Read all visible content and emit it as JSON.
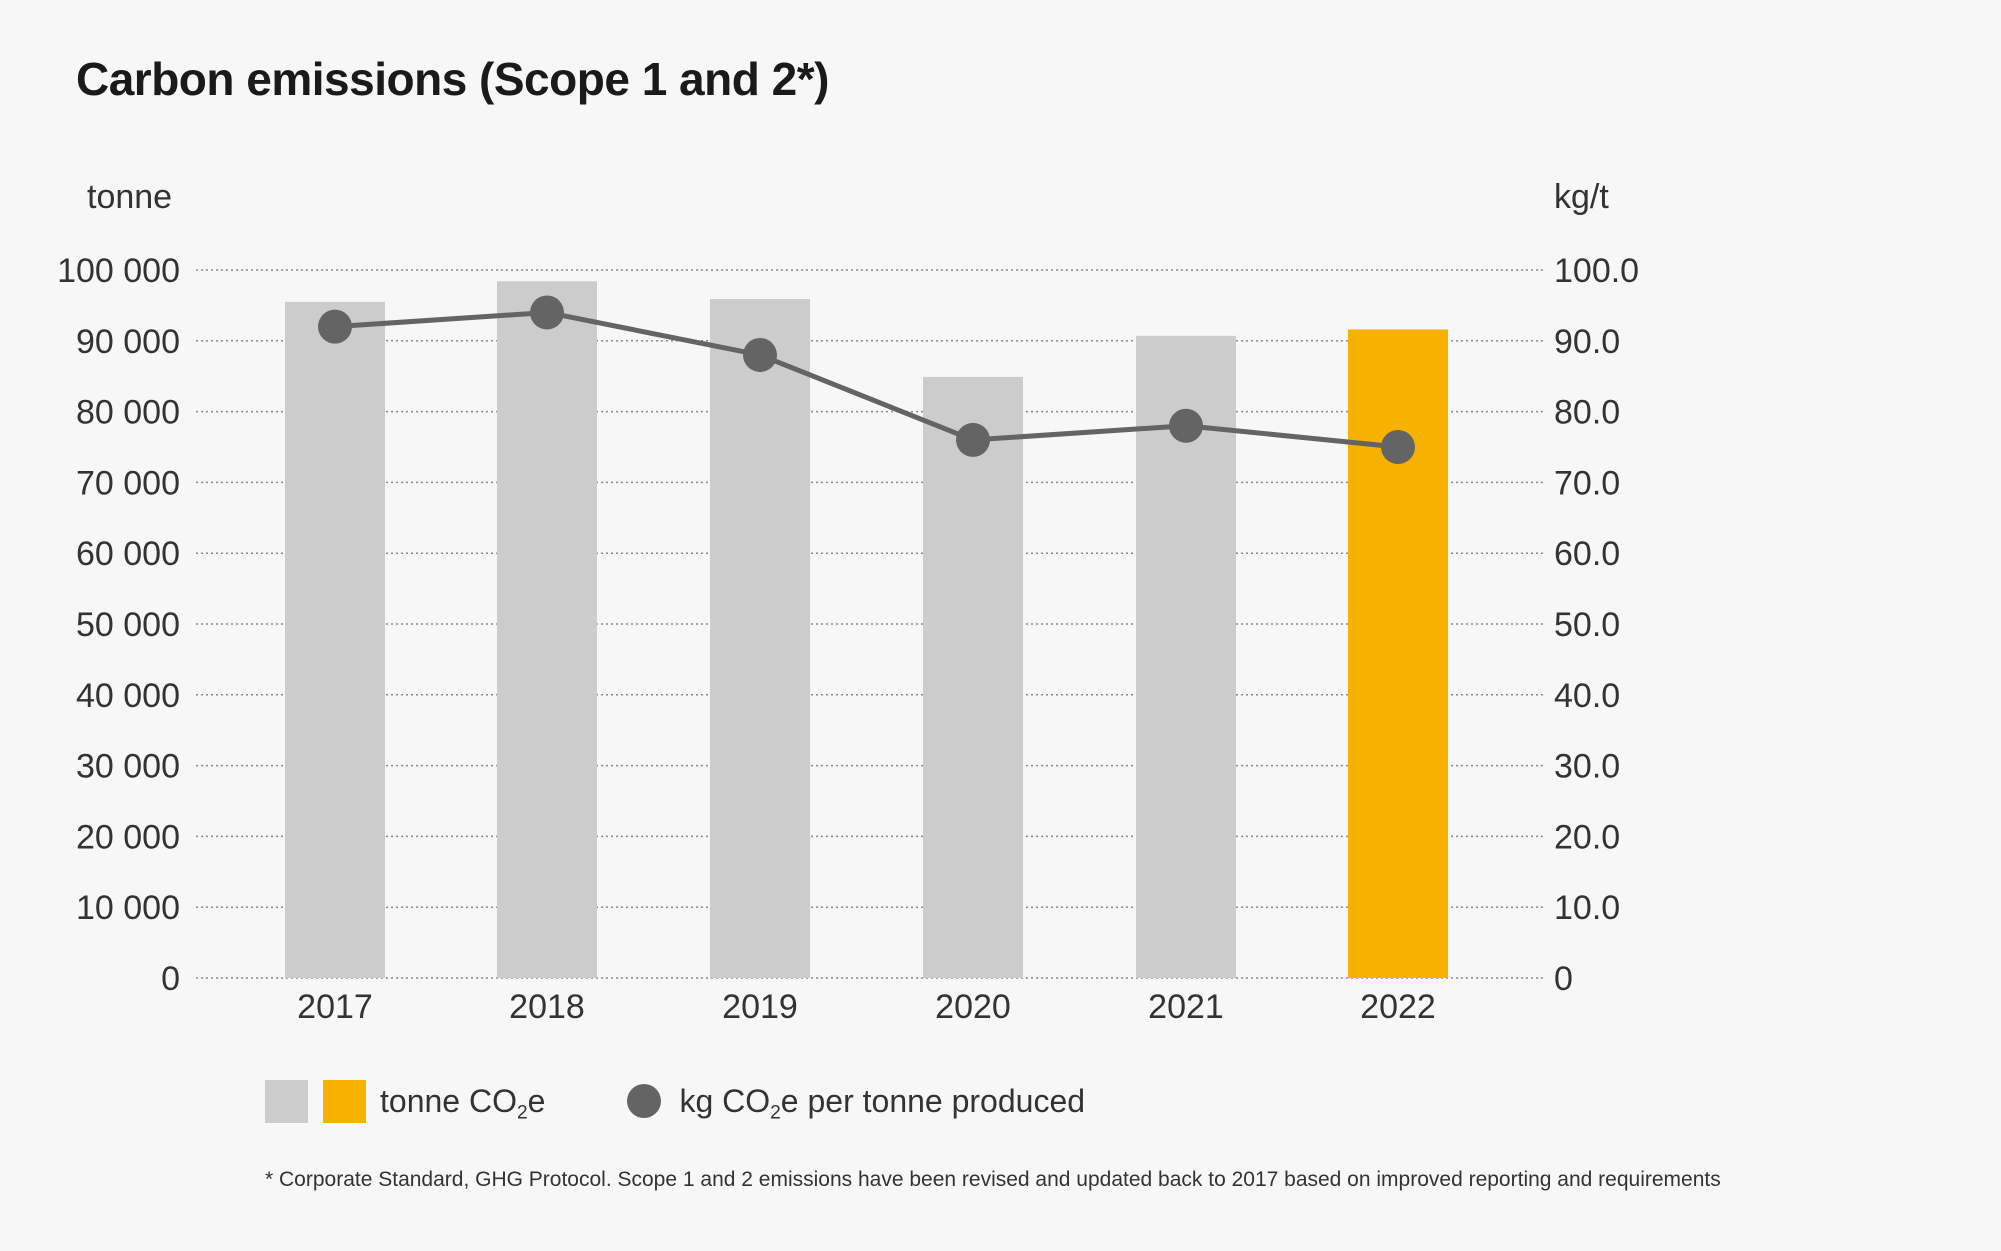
{
  "title": "Carbon emissions (Scope 1 and 2*)",
  "chart_data": {
    "type": "bar",
    "categories": [
      "2017",
      "2018",
      "2019",
      "2020",
      "2021",
      "2022"
    ],
    "series": [
      {
        "name": "tonne CO2e",
        "type": "bar",
        "axis": "left",
        "values": [
          95500,
          98400,
          95900,
          84900,
          90700,
          91600
        ]
      },
      {
        "name": "kg CO2e per tonne produced",
        "type": "line",
        "axis": "right",
        "values": [
          92.0,
          94.0,
          88.0,
          76.0,
          78.0,
          75.0
        ]
      }
    ],
    "bar_colors": [
      "#cccccc",
      "#cccccc",
      "#cccccc",
      "#cccccc",
      "#cccccc",
      "#f7b100"
    ],
    "line_color": "#646464",
    "ylabel": "tonne",
    "y2label": "kg/t",
    "ylim": [
      0,
      100000
    ],
    "y2lim": [
      0,
      100
    ],
    "yticks": [
      "0",
      "10 000",
      "20 000",
      "30 000",
      "40 000",
      "50 000",
      "60 000",
      "70 000",
      "80 000",
      "90 000",
      "100 000"
    ],
    "y2ticks": [
      "0",
      "10.0",
      "20.0",
      "30.0",
      "40.0",
      "50.0",
      "60.0",
      "70.0",
      "80.0",
      "90.0",
      "100.0"
    ],
    "grid": "dotted horizontal"
  },
  "legend": {
    "bars_prefix": "tonne CO",
    "bars_sub": "2",
    "bars_suffix": "e",
    "line_prefix": "kg CO",
    "line_sub": "2",
    "line_suffix": "e per tonne produced",
    "swatch_gray": "#cccccc",
    "swatch_highlight": "#f7b100",
    "dot_color": "#646464"
  },
  "footnote": "* Corporate Standard, GHG Protocol. Scope 1 and 2 emissions have been revised and updated back to 2017 based on improved reporting and requirements"
}
